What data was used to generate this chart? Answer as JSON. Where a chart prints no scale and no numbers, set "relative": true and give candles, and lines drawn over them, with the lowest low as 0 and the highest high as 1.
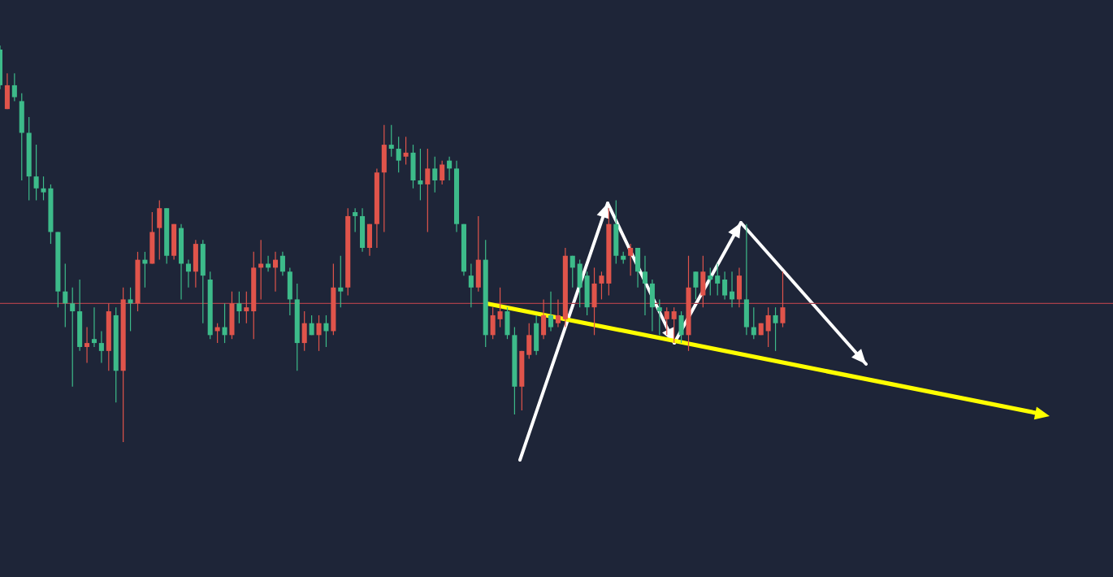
{
  "chart_data": {
    "type": "candlestick",
    "relative": true,
    "categories": [
      null,
      null,
      null,
      null,
      null,
      null,
      null,
      null,
      null,
      null,
      null,
      null,
      null,
      null,
      null,
      null,
      null,
      null,
      null,
      null,
      null,
      null,
      null,
      null,
      null,
      null,
      null,
      null,
      null,
      null,
      null,
      null,
      null,
      null,
      null,
      null,
      null,
      null,
      null,
      null,
      null,
      null,
      null,
      null,
      null,
      null,
      null,
      null,
      null,
      null,
      null,
      null,
      null,
      null,
      null,
      null,
      null,
      null,
      null,
      null,
      null,
      null,
      null,
      null,
      null,
      null,
      null,
      null,
      null,
      null,
      null,
      null,
      null,
      null,
      null,
      null,
      null,
      null,
      null,
      null,
      null,
      null,
      null,
      null,
      null,
      null,
      null,
      null,
      null,
      null,
      null,
      null,
      null,
      null,
      null,
      null,
      null,
      null,
      null,
      null,
      null,
      null,
      null,
      null,
      null,
      null,
      null,
      null,
      null,
      null,
      null,
      null,
      null,
      null,
      null,
      null,
      null,
      null,
      null,
      null,
      null,
      null,
      null,
      null,
      null,
      null,
      null,
      null,
      null,
      null,
      null,
      null,
      null,
      null,
      null,
      null,
      null,
      null,
      null,
      null,
      null,
      null,
      null,
      null,
      null
    ],
    "colors": [
      "#3dbb8a",
      "#e0544b",
      "#3dbb8a",
      "#3dbb8a",
      "#3dbb8a",
      "#3dbb8a",
      "#3dbb8a",
      "#3dbb8a",
      "#3dbb8a",
      "#3dbb8a",
      "#3dbb8a",
      "#3dbb8a",
      "#e0544b",
      "#3dbb8a",
      "#3dbb8a",
      "#e0544b",
      "#3dbb8a",
      "#e0544b",
      "#3dbb8a",
      "#e0544b",
      "#3dbb8a",
      "#e0544b",
      "#e0544b",
      "#3dbb8a",
      "#e0544b",
      "#3dbb8a",
      "#3dbb8a",
      "#e0544b",
      "#3dbb8a",
      "#3dbb8a",
      "#e0544b",
      "#3dbb8a",
      "#e0544b",
      "#3dbb8a",
      "#e0544b",
      "#e0544b",
      "#e0544b",
      "#3dbb8a",
      "#e0544b",
      "#3dbb8a",
      "#3dbb8a",
      "#3dbb8a",
      "#e0544b",
      "#3dbb8a",
      "#e0544b",
      "#3dbb8a",
      "#e0544b",
      "#3dbb8a",
      "#e0544b",
      "#3dbb8a",
      "#3dbb8a",
      "#e0544b",
      "#e0544b",
      "#e0544b",
      "#3dbb8a",
      "#3dbb8a",
      "#e0544b",
      "#3dbb8a",
      "#3dbb8a",
      "#e0544b",
      "#3dbb8a",
      "#e0544b",
      "#3dbb8a",
      "#3dbb8a",
      "#3dbb8a",
      "#3dbb8a",
      "#e0544b",
      "#3dbb8a",
      "#e0544b",
      "#e0544b",
      "#3dbb8a",
      "#3dbb8a",
      "#e0544b",
      "#e0544b",
      "#3dbb8a",
      "#e0544b",
      "#3dbb8a",
      "#e0544b",
      "#e0544b",
      "#3dbb8a",
      "#3dbb8a",
      "#3dbb8a",
      "#e0544b",
      "#e0544b",
      "#e0544b",
      "#3dbb8a",
      "#3dbb8a",
      "#e0544b",
      "#3dbb8a",
      "#3dbb8a",
      "#3dbb8a",
      "#3dbb8a",
      "#e0544b",
      "#e0544b",
      "#3dbb8a",
      "#e0544b",
      "#3dbb8a",
      "#e0544b",
      "#3dbb8a",
      "#3dbb8a",
      "#3dbb8a",
      "#3dbb8a",
      "#e0544b",
      "#3dbb8a",
      "#3dbb8a",
      "#e0544b",
      "#e0544b",
      "#3dbb8a",
      "#e0544b",
      null,
      null,
      null,
      null,
      null,
      null,
      null,
      null,
      null,
      null,
      null,
      null,
      null,
      null,
      null,
      null,
      null,
      null,
      null,
      null,
      null,
      null,
      null,
      null,
      null,
      null,
      null,
      null,
      null,
      null,
      null,
      null,
      null,
      null,
      null,
      null
    ],
    "ohlc": [
      [
        0.99,
        1.0,
        0.89,
        0.9
      ],
      [
        0.84,
        0.93,
        0.84,
        0.9
      ],
      [
        0.9,
        0.93,
        0.86,
        0.87
      ],
      [
        0.86,
        0.88,
        0.66,
        0.78
      ],
      [
        0.78,
        0.82,
        0.61,
        0.67
      ],
      [
        0.67,
        0.75,
        0.61,
        0.64
      ],
      [
        0.64,
        0.67,
        0.61,
        0.63
      ],
      [
        0.64,
        0.65,
        0.5,
        0.53
      ],
      [
        0.53,
        0.53,
        0.34,
        0.38
      ],
      [
        0.38,
        0.45,
        0.29,
        0.35
      ],
      [
        0.35,
        0.39,
        0.14,
        0.33
      ],
      [
        0.33,
        0.41,
        0.23,
        0.24
      ],
      [
        0.24,
        0.29,
        0.2,
        0.25
      ],
      [
        0.26,
        0.34,
        0.24,
        0.25
      ],
      [
        0.25,
        0.28,
        0.2,
        0.23
      ],
      [
        0.23,
        0.35,
        0.18,
        0.33
      ],
      [
        0.32,
        0.34,
        0.1,
        0.18
      ],
      [
        0.18,
        0.39,
        0.0,
        0.36
      ],
      [
        0.36,
        0.39,
        0.28,
        0.35
      ],
      [
        0.35,
        0.48,
        0.33,
        0.46
      ],
      [
        0.46,
        0.48,
        0.39,
        0.45
      ],
      [
        0.45,
        0.58,
        0.45,
        0.53
      ],
      [
        0.54,
        0.61,
        0.46,
        0.59
      ],
      [
        0.59,
        0.59,
        0.45,
        0.47
      ],
      [
        0.47,
        0.55,
        0.46,
        0.55
      ],
      [
        0.54,
        0.55,
        0.36,
        0.45
      ],
      [
        0.45,
        0.46,
        0.39,
        0.43
      ],
      [
        0.43,
        0.51,
        0.39,
        0.5
      ],
      [
        0.5,
        0.51,
        0.3,
        0.42
      ],
      [
        0.41,
        0.43,
        0.26,
        0.27
      ],
      [
        0.28,
        0.3,
        0.25,
        0.29
      ],
      [
        0.29,
        0.35,
        0.25,
        0.27
      ],
      [
        0.27,
        0.38,
        0.26,
        0.35
      ],
      [
        0.35,
        0.38,
        0.3,
        0.33
      ],
      [
        0.33,
        0.38,
        0.3,
        0.34
      ],
      [
        0.33,
        0.48,
        0.26,
        0.44
      ],
      [
        0.44,
        0.51,
        0.36,
        0.45
      ],
      [
        0.45,
        0.47,
        0.43,
        0.44
      ],
      [
        0.44,
        0.48,
        0.38,
        0.46
      ],
      [
        0.47,
        0.48,
        0.42,
        0.43
      ],
      [
        0.43,
        0.44,
        0.32,
        0.36
      ],
      [
        0.36,
        0.4,
        0.18,
        0.25
      ],
      [
        0.25,
        0.33,
        0.23,
        0.3
      ],
      [
        0.3,
        0.32,
        0.27,
        0.27
      ],
      [
        0.27,
        0.32,
        0.23,
        0.3
      ],
      [
        0.3,
        0.32,
        0.24,
        0.28
      ],
      [
        0.28,
        0.45,
        0.27,
        0.39
      ],
      [
        0.39,
        0.47,
        0.34,
        0.38
      ],
      [
        0.39,
        0.59,
        0.37,
        0.57
      ],
      [
        0.58,
        0.59,
        0.53,
        0.57
      ],
      [
        0.57,
        0.59,
        0.48,
        0.49
      ],
      [
        0.49,
        0.55,
        0.47,
        0.55
      ],
      [
        0.55,
        0.69,
        0.49,
        0.68
      ],
      [
        0.68,
        0.8,
        0.53,
        0.75
      ],
      [
        0.75,
        0.8,
        0.72,
        0.74
      ],
      [
        0.74,
        0.77,
        0.68,
        0.71
      ],
      [
        0.72,
        0.77,
        0.7,
        0.73
      ],
      [
        0.73,
        0.75,
        0.64,
        0.66
      ],
      [
        0.66,
        0.74,
        0.61,
        0.65
      ],
      [
        0.65,
        0.74,
        0.53,
        0.69
      ],
      [
        0.69,
        0.72,
        0.63,
        0.66
      ],
      [
        0.66,
        0.71,
        0.65,
        0.7
      ],
      [
        0.71,
        0.72,
        0.66,
        0.69
      ],
      [
        0.69,
        0.71,
        0.53,
        0.55
      ],
      [
        0.55,
        0.55,
        0.42,
        0.43
      ],
      [
        0.42,
        0.45,
        0.34,
        0.39
      ],
      [
        0.39,
        0.57,
        0.38,
        0.46
      ],
      [
        0.46,
        0.51,
        0.24,
        0.27
      ],
      [
        0.27,
        0.34,
        0.26,
        0.32
      ],
      [
        0.31,
        0.39,
        0.29,
        0.33
      ],
      [
        0.33,
        0.34,
        0.26,
        0.27
      ],
      [
        0.27,
        0.29,
        0.07,
        0.14
      ],
      [
        0.14,
        0.23,
        0.08,
        0.23
      ],
      [
        0.22,
        0.3,
        0.21,
        0.27
      ],
      [
        0.3,
        0.32,
        0.22,
        0.23
      ],
      [
        0.27,
        0.36,
        0.26,
        0.32
      ],
      [
        0.32,
        0.38,
        0.28,
        0.29
      ],
      [
        0.3,
        0.36,
        0.29,
        0.32
      ],
      [
        0.31,
        0.49,
        0.29,
        0.47
      ],
      [
        0.47,
        0.47,
        0.39,
        0.44
      ],
      [
        0.45,
        0.46,
        0.34,
        0.39
      ],
      [
        0.42,
        0.43,
        0.32,
        0.34
      ],
      [
        0.34,
        0.44,
        0.27,
        0.4
      ],
      [
        0.4,
        0.43,
        0.36,
        0.42
      ],
      [
        0.4,
        0.59,
        0.37,
        0.55
      ],
      [
        0.55,
        0.61,
        0.45,
        0.47
      ],
      [
        0.47,
        0.48,
        0.45,
        0.46
      ],
      [
        0.47,
        0.5,
        0.42,
        0.49
      ],
      [
        0.49,
        0.49,
        0.39,
        0.43
      ],
      [
        0.43,
        0.47,
        0.32,
        0.4
      ],
      [
        0.4,
        0.41,
        0.28,
        0.34
      ],
      [
        0.34,
        0.36,
        0.27,
        0.33
      ],
      [
        0.31,
        0.34,
        0.27,
        0.33
      ],
      [
        0.31,
        0.34,
        0.25,
        0.33
      ],
      [
        0.32,
        0.33,
        0.25,
        0.27
      ],
      [
        0.27,
        0.47,
        0.23,
        0.39
      ],
      [
        0.43,
        0.43,
        0.36,
        0.39
      ],
      [
        0.37,
        0.47,
        0.34,
        0.43
      ],
      [
        0.42,
        0.44,
        0.37,
        0.41
      ],
      [
        0.42,
        0.45,
        0.37,
        0.4
      ],
      [
        0.41,
        0.43,
        0.36,
        0.37
      ],
      [
        0.38,
        0.43,
        0.34,
        0.36
      ],
      [
        0.36,
        0.44,
        0.34,
        0.42
      ],
      [
        0.36,
        0.55,
        0.27,
        0.29
      ],
      [
        0.29,
        0.34,
        0.26,
        0.27
      ],
      [
        0.27,
        0.3,
        0.27,
        0.3
      ],
      [
        0.28,
        0.34,
        0.24,
        0.32
      ],
      [
        0.32,
        0.34,
        0.23,
        0.3
      ],
      [
        0.3,
        0.43,
        0.29,
        0.34
      ],
      null,
      null,
      null,
      null,
      null,
      null,
      null,
      null,
      null,
      null,
      null,
      null,
      null,
      null,
      null,
      null,
      null,
      null,
      null,
      null,
      null,
      null,
      null,
      null,
      null,
      null,
      null,
      null,
      null,
      null,
      null,
      null,
      null,
      null,
      null,
      null
    ],
    "ref_lines": [
      {
        "axis": "y",
        "value": 0.35,
        "color": "#a8404a"
      }
    ],
    "series": [
      {
        "type": "line",
        "color": "#ffff00",
        "values": [
          null,
          null,
          null,
          null,
          null,
          null,
          null,
          null,
          null,
          null,
          null,
          null,
          null,
          null,
          null,
          null,
          null,
          null,
          null,
          null,
          null,
          null,
          null,
          null,
          null,
          null,
          null,
          null,
          null,
          null,
          null,
          null,
          null,
          null,
          null,
          null,
          null,
          null,
          null,
          null,
          null,
          null,
          null,
          null,
          null,
          null,
          null,
          null,
          null,
          null,
          null,
          null,
          null,
          null,
          null,
          null,
          null,
          null,
          null,
          null,
          null,
          null,
          null,
          null,
          null,
          null,
          null,
          0.35,
          null,
          null,
          null,
          null,
          null,
          null,
          null,
          null,
          null,
          null,
          null,
          null,
          null,
          null,
          null,
          null,
          null,
          null,
          null,
          null,
          null,
          null,
          null,
          null,
          null,
          null,
          null,
          null,
          null,
          null,
          null,
          null,
          null,
          null,
          null,
          null,
          null,
          null,
          null,
          null,
          null,
          null,
          null,
          null,
          null,
          null,
          null,
          null,
          null,
          null,
          null,
          null,
          null,
          null,
          null,
          null,
          null,
          null,
          null,
          null,
          null,
          null,
          null,
          null,
          null,
          null,
          null,
          null,
          null,
          null,
          null,
          null,
          null,
          null,
          null,
          null,
          0.07
        ]
      }
    ]
  }
}
